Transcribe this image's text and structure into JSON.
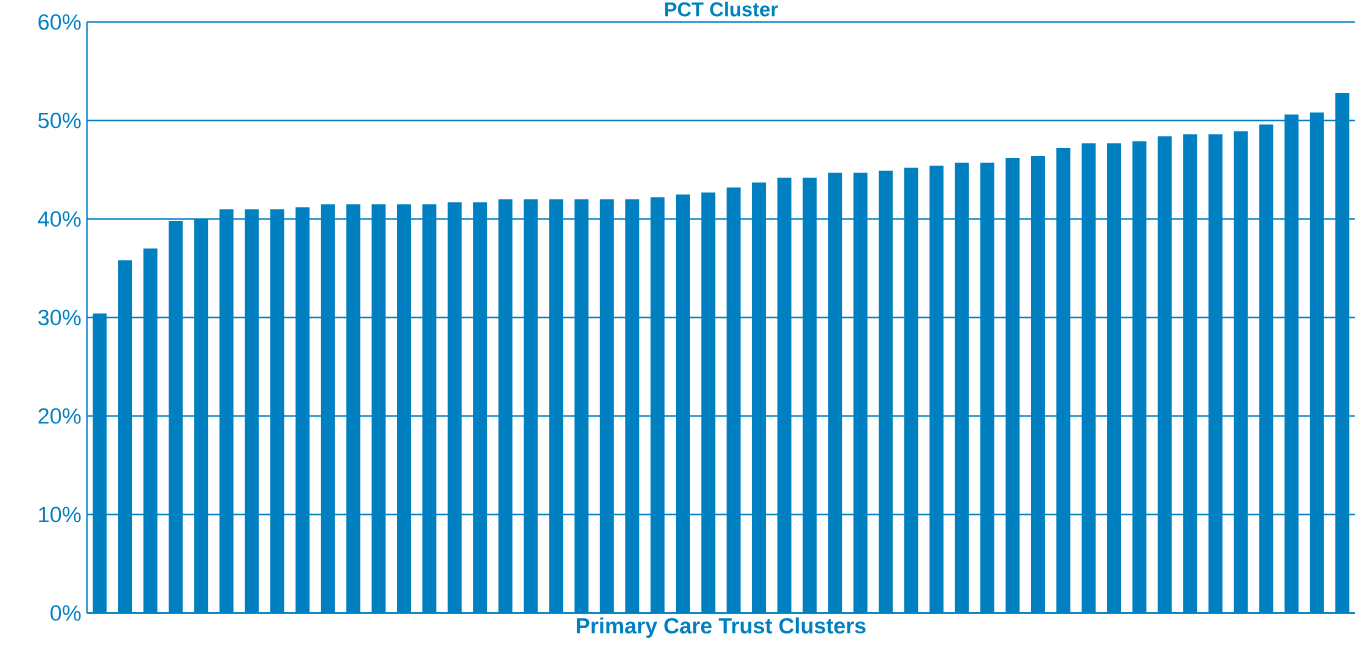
{
  "chart_data": {
    "type": "bar",
    "title": "PCT Cluster",
    "xlabel": "Primary Care Trust Clusters",
    "categories": [
      null,
      null,
      null,
      null,
      null,
      null,
      null,
      null,
      null,
      null,
      null,
      null,
      null,
      null,
      null,
      null,
      null,
      null,
      null,
      null,
      null,
      null,
      null,
      null,
      null,
      null,
      null,
      null,
      null,
      null,
      null,
      null,
      null,
      null,
      null,
      null,
      null,
      null,
      null,
      null,
      null,
      null,
      null,
      null,
      null,
      null,
      null,
      null,
      null,
      null
    ],
    "values": [
      30.4,
      35.8,
      37.0,
      39.8,
      40.0,
      41.0,
      41.0,
      41.0,
      41.2,
      41.5,
      41.5,
      41.5,
      41.5,
      41.5,
      41.7,
      41.7,
      42.0,
      42.0,
      42.0,
      42.0,
      42.0,
      42.0,
      42.2,
      42.5,
      42.7,
      43.2,
      43.7,
      44.2,
      44.2,
      44.7,
      44.7,
      44.9,
      45.2,
      45.4,
      45.7,
      45.7,
      46.2,
      46.4,
      47.2,
      47.7,
      47.7,
      47.9,
      48.4,
      48.6,
      48.6,
      48.9,
      49.6,
      50.6,
      50.8,
      52.8
    ],
    "color": "#0080c0",
    "ylim": [
      0,
      60
    ],
    "yticks": [
      {
        "value": 0,
        "label": "0%"
      },
      {
        "value": 10,
        "label": "10%"
      },
      {
        "value": 20,
        "label": "20%"
      },
      {
        "value": 30,
        "label": "30%"
      },
      {
        "value": 40,
        "label": "40%"
      },
      {
        "value": 50,
        "label": "50%"
      },
      {
        "value": 60,
        "label": "60%"
      }
    ],
    "grid": "y"
  }
}
